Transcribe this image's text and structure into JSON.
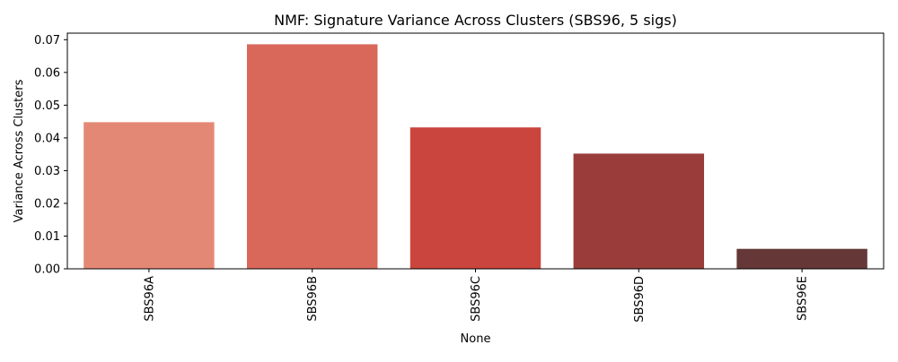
{
  "chart_data": {
    "type": "bar",
    "title": "NMF: Signature Variance Across Clusters (SBS96, 5 sigs)",
    "xlabel": "None",
    "ylabel": "Variance Across Clusters",
    "categories": [
      "SBS96A",
      "SBS96B",
      "SBS96C",
      "SBS96D",
      "SBS96E"
    ],
    "values": [
      0.0448,
      0.0686,
      0.0432,
      0.0352,
      0.0061
    ],
    "colors": [
      "#e48876",
      "#d9685b",
      "#ca453d",
      "#9a3d3a",
      "#653837"
    ],
    "ylim": [
      0,
      0.072
    ],
    "yticks": [
      0.0,
      0.01,
      0.02,
      0.03,
      0.04,
      0.05,
      0.06,
      0.07
    ],
    "ytick_labels": [
      "0.00",
      "0.01",
      "0.02",
      "0.03",
      "0.04",
      "0.05",
      "0.06",
      "0.07"
    ],
    "grid": false,
    "legend": "none"
  }
}
